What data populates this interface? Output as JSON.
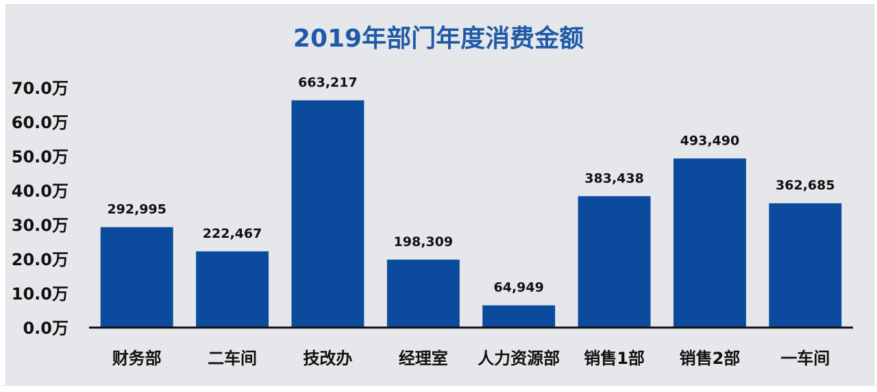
{
  "chart_data": {
    "type": "bar",
    "title": "2019年部门年度消费金额",
    "categories": [
      "财务部",
      "二车间",
      "技改办",
      "经理室",
      "人力资源部",
      "销售1部",
      "销售2部",
      "一车间"
    ],
    "values": [
      292995,
      222467,
      663217,
      198309,
      64949,
      383438,
      493490,
      362685
    ],
    "data_labels": [
      "292,995",
      "222,467",
      "663,217",
      "198,309",
      "64,949",
      "383,438",
      "493,490",
      "362,685"
    ],
    "yticks": [
      0,
      100000,
      200000,
      300000,
      400000,
      500000,
      600000,
      700000
    ],
    "ytick_labels": [
      "0.0万",
      "10.0万",
      "20.0万",
      "30.0万",
      "40.0万",
      "50.0万",
      "60.0万",
      "70.0万"
    ],
    "ylim": [
      0,
      700000
    ],
    "grid": false,
    "legend": "none",
    "xlabel": "",
    "ylabel": ""
  },
  "colors": {
    "bar": "#0b4a9c",
    "title": "#1f5aa8",
    "axis": "#111111",
    "background": "#e6e7ea"
  }
}
